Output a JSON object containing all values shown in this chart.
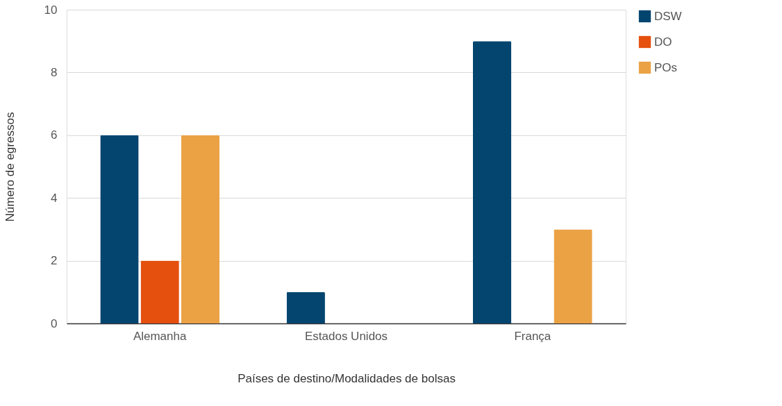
{
  "chart_data": {
    "type": "bar",
    "xlabel": "Países de destino/Modalidades de bolsas",
    "ylabel": "Número de egressos",
    "categories": [
      "Alemanha",
      "Estados Unidos",
      "França"
    ],
    "series": [
      {
        "name": "DSW",
        "color": "#03456f",
        "values": [
          6,
          1,
          9
        ]
      },
      {
        "name": "DO",
        "color": "#e5500f",
        "values": [
          2,
          0,
          0
        ]
      },
      {
        "name": "POs",
        "color": "#eba245",
        "values": [
          6,
          0,
          3
        ]
      }
    ],
    "ylim": [
      0,
      10
    ],
    "yticks": [
      0,
      2,
      4,
      6,
      8,
      10
    ],
    "grid": "y",
    "legend": "right"
  }
}
